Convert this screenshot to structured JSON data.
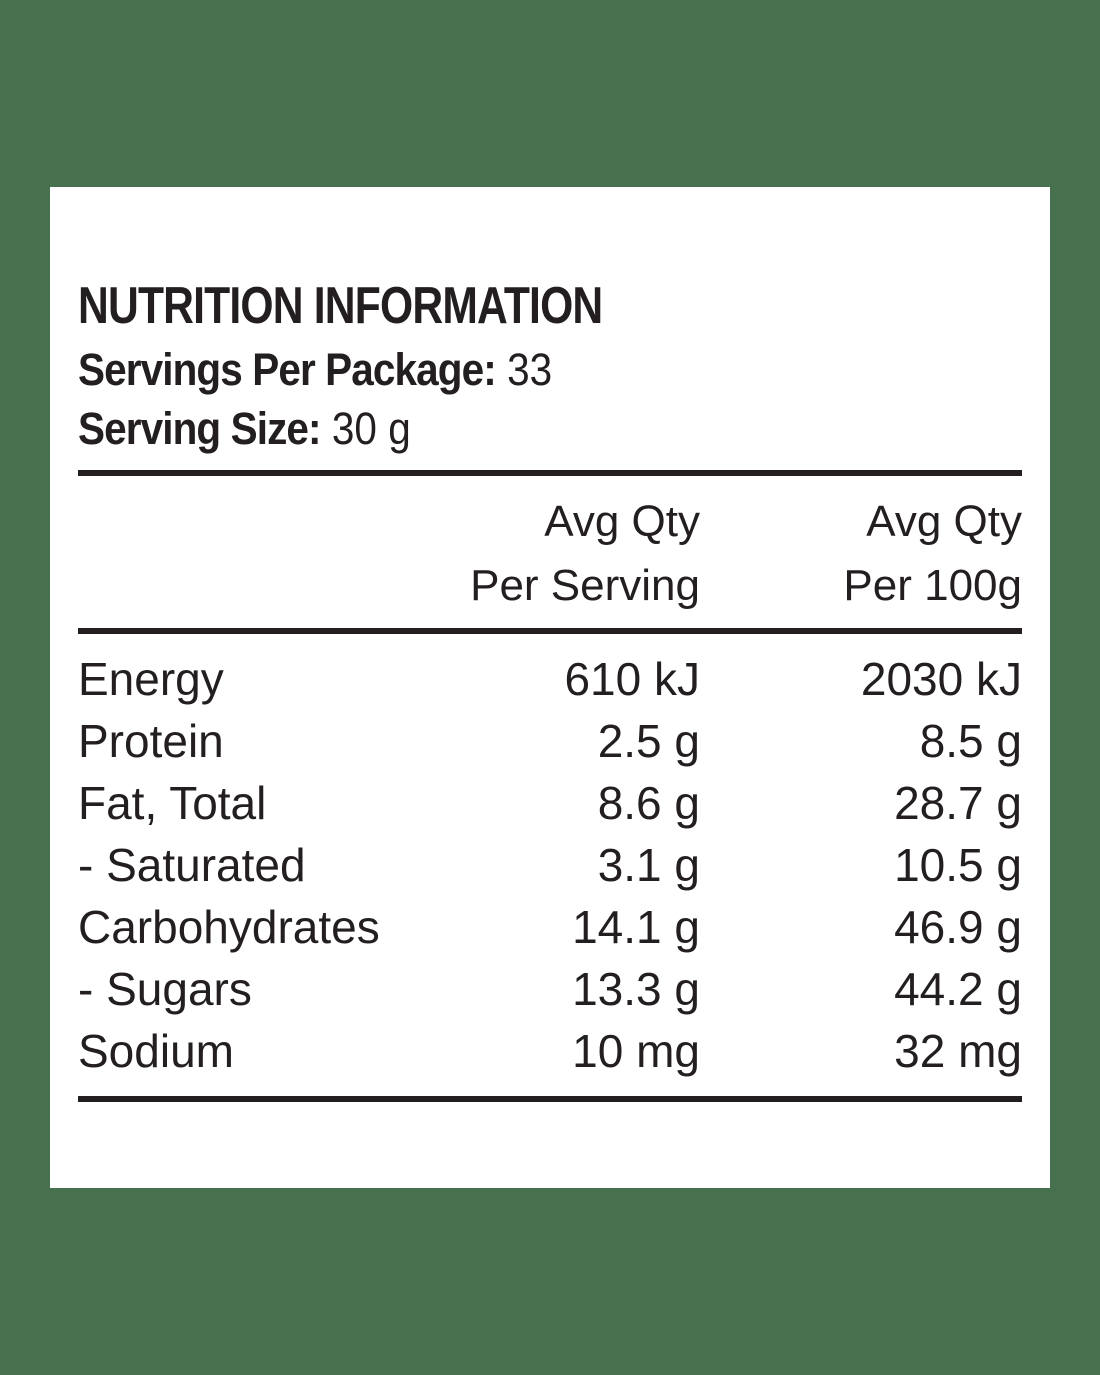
{
  "colors": {
    "background": "#46704e",
    "panel": "#ffffff",
    "text": "#231f20"
  },
  "panel": {
    "title": "NUTRITION INFORMATION",
    "servings_per_package": {
      "label": "Servings Per Package:",
      "value": "33"
    },
    "serving_size": {
      "label": "Serving Size:",
      "value": "30 g"
    },
    "columns": {
      "per_serving": [
        "Avg Qty",
        "Per Serving"
      ],
      "per_100g": [
        "Avg Qty",
        "Per 100g"
      ]
    },
    "rows": [
      {
        "nutrient": "Energy",
        "per_serving": "610 kJ",
        "per_100g": "2030 kJ"
      },
      {
        "nutrient": "Protein",
        "per_serving": "2.5 g",
        "per_100g": "8.5 g"
      },
      {
        "nutrient": "Fat, Total",
        "per_serving": "8.6 g",
        "per_100g": "28.7 g"
      },
      {
        "nutrient": "- Saturated",
        "per_serving": "3.1 g",
        "per_100g": "10.5 g"
      },
      {
        "nutrient": "Carbohydrates",
        "per_serving": "14.1 g",
        "per_100g": "46.9 g"
      },
      {
        "nutrient": "- Sugars",
        "per_serving": "13.3 g",
        "per_100g": "44.2 g"
      },
      {
        "nutrient": "Sodium",
        "per_serving": "10 mg",
        "per_100g": "32 mg"
      }
    ]
  }
}
